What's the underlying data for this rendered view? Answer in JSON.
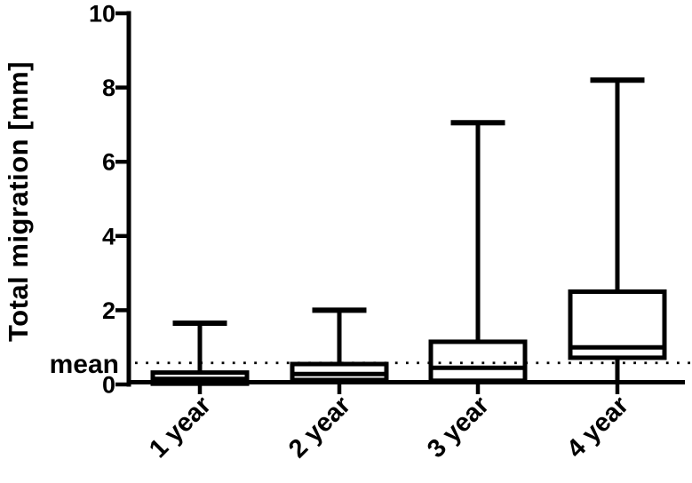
{
  "chart_data": {
    "type": "box",
    "title": "",
    "xlabel": "",
    "ylabel": "Total migration [mm]",
    "ylim": [
      0,
      10
    ],
    "yticks": [
      0,
      2,
      4,
      6,
      8,
      10
    ],
    "categories": [
      "1 year",
      "2 year",
      "3 year",
      "4 year"
    ],
    "series": [
      {
        "name": "1 year",
        "whisker_low": 0,
        "q1": 0.02,
        "median": 0.15,
        "q3": 0.32,
        "whisker_high": 1.65
      },
      {
        "name": "2 year",
        "whisker_low": 0,
        "q1": 0.12,
        "median": 0.28,
        "q3": 0.55,
        "whisker_high": 2.0
      },
      {
        "name": "3 year",
        "whisker_low": 0,
        "q1": 0.1,
        "median": 0.45,
        "q3": 1.15,
        "whisker_high": 7.05
      },
      {
        "name": "4 year",
        "whisker_low": 0,
        "q1": 0.72,
        "median": 1.0,
        "q3": 2.5,
        "whisker_high": 8.2
      }
    ],
    "reference_line": {
      "label": "mean",
      "value": 0.58,
      "style": "dotted"
    },
    "legend": null,
    "grid": false,
    "colors": {
      "foreground": "#000000",
      "background": "#ffffff",
      "box_fill": "#ffffff"
    }
  }
}
